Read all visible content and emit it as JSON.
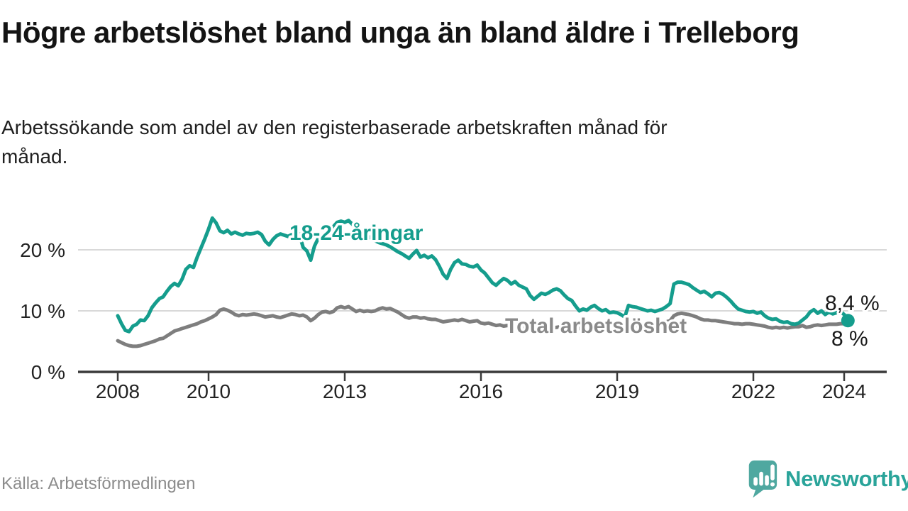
{
  "header": {
    "title": "Högre arbetslöshet bland unga än bland äldre i Trelleborg",
    "subtitle": "Arbetssökande som andel av den registerbaserade arbetskraften månad för månad."
  },
  "footer": {
    "source": "Källa: Arbetsförmedlingen",
    "logo_text": "Newsworthy",
    "logo_icon": "newsworthy-speech-bubble-chart-icon"
  },
  "colors": {
    "youth_line": "#159d8d",
    "total_line": "#7e7e7e",
    "total_label": "#8a8a8a",
    "grid": "#d9d9d9",
    "axis": "#3a3a3a",
    "text": "#222222",
    "logo_bubble": "#4fa8a0",
    "logo_wordmark": "#2aa49a"
  },
  "chart_data": {
    "type": "line",
    "title": "Högre arbetslöshet bland unga än bland äldre i Trelleborg",
    "ylabel": "Arbetssökande som andel av den registerbaserade arbetskraften",
    "x_unit": "år, månadsvisa värden",
    "x_start": 2008.0,
    "x_step": 0.083333,
    "xticks": [
      2008,
      2010,
      2013,
      2016,
      2019,
      2022,
      2024
    ],
    "yticks": [
      {
        "value": 0,
        "label": "0 %"
      },
      {
        "value": 10,
        "label": "10 %"
      },
      {
        "value": 20,
        "label": "20 %"
      }
    ],
    "ylim": [
      0,
      27.8
    ],
    "xlim": [
      2007.1,
      2024.95
    ],
    "grid": "horizontal",
    "legend_position": "inline-labels",
    "series": [
      {
        "name": "18-24-åringar",
        "color": "#159d8d",
        "end_label": "8,4 %",
        "end_value": 8.4,
        "end_marker": true,
        "values": [
          9.2,
          7.9,
          6.8,
          6.6,
          7.5,
          7.8,
          8.5,
          8.4,
          9.2,
          10.5,
          11.3,
          12.0,
          12.3,
          13.2,
          14.0,
          14.5,
          14.1,
          15.2,
          16.8,
          17.4,
          17.1,
          18.8,
          20.3,
          21.8,
          23.4,
          25.2,
          24.4,
          23.1,
          22.8,
          23.2,
          22.6,
          22.9,
          22.6,
          22.4,
          22.7,
          22.6,
          22.7,
          22.9,
          22.5,
          21.4,
          20.8,
          21.7,
          22.3,
          22.6,
          22.4,
          22.2,
          22.5,
          22.4,
          22.6,
          20.4,
          19.8,
          18.3,
          20.6,
          21.9,
          22.1,
          22.4,
          22.9,
          23.8,
          24.5,
          24.7,
          24.5,
          24.8,
          24.2,
          23.6,
          23.1,
          22.7,
          22.3,
          21.9,
          21.5,
          21.2,
          21.0,
          20.8,
          20.5,
          20.1,
          19.7,
          19.4,
          19.0,
          18.6,
          19.3,
          19.9,
          18.8,
          19.1,
          18.7,
          19.0,
          18.4,
          17.3,
          16.0,
          15.3,
          16.8,
          17.9,
          18.3,
          17.7,
          17.6,
          17.3,
          17.2,
          17.5,
          16.7,
          16.2,
          15.4,
          14.6,
          14.2,
          14.8,
          15.3,
          15.0,
          14.4,
          14.8,
          14.2,
          13.9,
          13.6,
          12.5,
          11.9,
          12.4,
          12.9,
          12.7,
          13.0,
          13.4,
          13.6,
          13.3,
          12.6,
          12.0,
          11.7,
          10.8,
          10.0,
          10.3,
          10.1,
          10.6,
          10.9,
          10.4,
          10.0,
          10.2,
          9.7,
          9.8,
          9.7,
          9.4,
          9.0,
          10.9,
          10.7,
          10.6,
          10.4,
          10.2,
          10.0,
          10.1,
          9.9,
          10.1,
          10.3,
          10.7,
          11.2,
          14.4,
          14.7,
          14.7,
          14.5,
          14.3,
          13.8,
          13.4,
          13.0,
          13.2,
          12.8,
          12.3,
          12.9,
          13.0,
          12.7,
          12.2,
          11.6,
          10.9,
          10.3,
          10.1,
          9.9,
          9.8,
          9.9,
          9.6,
          9.8,
          9.2,
          8.8,
          8.6,
          8.7,
          8.3,
          8.1,
          8.2,
          7.9,
          7.8,
          8.0,
          8.5,
          9.0,
          9.8,
          10.2,
          9.6,
          10.0,
          9.4,
          9.8,
          9.5,
          9.7,
          9.9,
          9.4,
          8.4
        ]
      },
      {
        "name": "Total arbetslöshet",
        "color": "#7e7e7e",
        "end_label": "8 %",
        "end_value": 8.0,
        "end_marker": false,
        "values": [
          5.1,
          4.8,
          4.5,
          4.3,
          4.2,
          4.2,
          4.3,
          4.5,
          4.7,
          4.9,
          5.1,
          5.4,
          5.5,
          5.9,
          6.3,
          6.7,
          6.9,
          7.1,
          7.3,
          7.5,
          7.7,
          7.9,
          8.2,
          8.4,
          8.7,
          9.0,
          9.4,
          10.1,
          10.3,
          10.1,
          9.8,
          9.4,
          9.2,
          9.4,
          9.3,
          9.4,
          9.5,
          9.4,
          9.2,
          9.0,
          9.1,
          9.2,
          9.0,
          8.9,
          9.1,
          9.3,
          9.5,
          9.4,
          9.2,
          9.3,
          9.0,
          8.4,
          8.8,
          9.4,
          9.8,
          9.9,
          9.7,
          9.9,
          10.5,
          10.7,
          10.5,
          10.7,
          10.3,
          9.9,
          10.1,
          9.9,
          10.0,
          9.9,
          10.0,
          10.3,
          10.5,
          10.3,
          10.4,
          10.1,
          9.8,
          9.4,
          9.0,
          8.8,
          9.0,
          9.0,
          8.8,
          8.9,
          8.7,
          8.6,
          8.6,
          8.4,
          8.2,
          8.3,
          8.4,
          8.5,
          8.4,
          8.6,
          8.4,
          8.2,
          8.3,
          8.4,
          8.0,
          7.9,
          8.0,
          7.8,
          7.6,
          7.7,
          7.5,
          7.6,
          7.4,
          7.6,
          7.5,
          7.4,
          7.5,
          7.4,
          7.3,
          7.4,
          7.3,
          7.2,
          7.3,
          7.2,
          7.3,
          7.4,
          7.3,
          7.4,
          7.3,
          7.2,
          7.1,
          7.2,
          7.1,
          7.2,
          7.3,
          7.2,
          7.1,
          7.2,
          7.3,
          7.4,
          7.5,
          7.4,
          7.3,
          7.4,
          7.5,
          7.6,
          7.5,
          7.6,
          7.7,
          7.8,
          7.9,
          8.0,
          8.1,
          8.2,
          8.4,
          9.2,
          9.5,
          9.6,
          9.5,
          9.4,
          9.2,
          9.0,
          8.7,
          8.5,
          8.5,
          8.4,
          8.4,
          8.3,
          8.2,
          8.1,
          8.0,
          7.9,
          7.9,
          7.8,
          7.9,
          7.9,
          7.8,
          7.7,
          7.6,
          7.5,
          7.3,
          7.2,
          7.3,
          7.2,
          7.3,
          7.2,
          7.3,
          7.4,
          7.4,
          7.6,
          7.3,
          7.4,
          7.6,
          7.7,
          7.6,
          7.7,
          7.8,
          7.8,
          7.8,
          7.9,
          7.9,
          8.0
        ]
      }
    ]
  }
}
